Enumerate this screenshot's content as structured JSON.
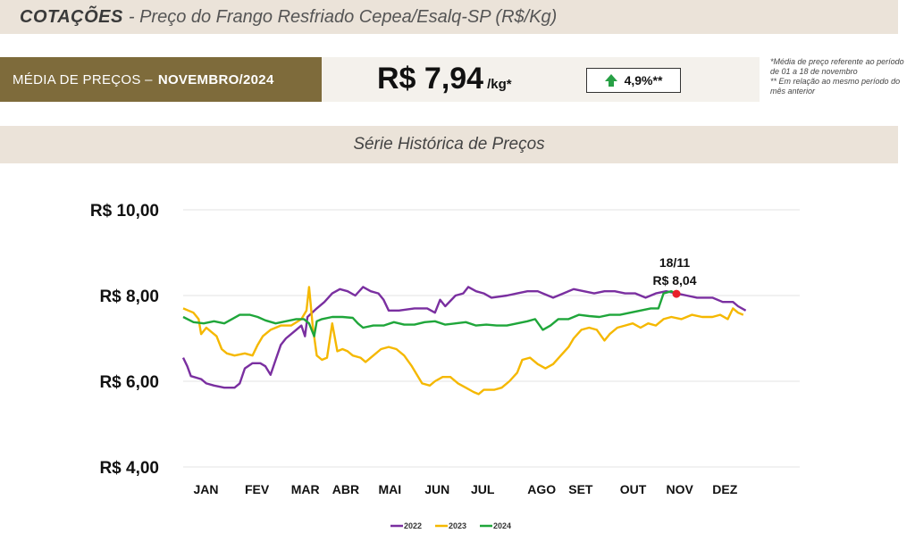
{
  "header": {
    "title_strong": "COTAÇÕES",
    "title_rest": "- Preço do Frango Resfriado Cepea/Esalq-SP (R$/Kg)"
  },
  "summary": {
    "label": "MÉDIA DE PREÇOS –",
    "month": "NOVEMBRO/2024",
    "price": "R$ 7,94",
    "unit": "/kg*",
    "change": "4,9%**",
    "change_icon": "arrow-up-icon",
    "footnote_1": "*Média de preço referente ao período de 01 a 18 de novembro",
    "footnote_2": "** Em relação ao mesmo período do mês anterior"
  },
  "section": {
    "title": "Série Histórica de Preços"
  },
  "chart_data": {
    "type": "line",
    "title": "Série Histórica de Preços",
    "ylim": [
      4,
      10
    ],
    "xlim": [
      0,
      12
    ],
    "yticks": [
      4,
      6,
      8,
      10
    ],
    "ytick_labels": [
      "R$ 4,00",
      "R$ 6,00",
      "R$ 8,00",
      "R$ 10,00"
    ],
    "categories": [
      "JAN",
      "FEV",
      "MAR",
      "ABR",
      "MAI",
      "JUN",
      "JUL",
      "AGO",
      "SET",
      "OUT",
      "NOV",
      "DEZ"
    ],
    "category_positions": [
      0.2,
      1.2,
      2.1,
      2.9,
      3.8,
      4.7,
      5.6,
      6.7,
      7.5,
      8.5,
      9.4,
      10.3
    ],
    "grid": true,
    "legend_position": "bottom-center",
    "annotation": {
      "label": "18/11",
      "value_label": "R$ 8,04",
      "x": 9.6,
      "y": 8.04,
      "color": "#e8202a"
    },
    "series": [
      {
        "name": "2022",
        "color": "#7a2fa0",
        "points": [
          [
            0,
            6.55
          ],
          [
            0.08,
            6.35
          ],
          [
            0.15,
            6.12
          ],
          [
            0.35,
            6.05
          ],
          [
            0.45,
            5.95
          ],
          [
            0.6,
            5.9
          ],
          [
            0.8,
            5.85
          ],
          [
            1.0,
            5.85
          ],
          [
            1.1,
            5.95
          ],
          [
            1.2,
            6.3
          ],
          [
            1.35,
            6.42
          ],
          [
            1.5,
            6.42
          ],
          [
            1.6,
            6.35
          ],
          [
            1.7,
            6.15
          ],
          [
            1.8,
            6.5
          ],
          [
            1.9,
            6.85
          ],
          [
            2.0,
            7.0
          ],
          [
            2.1,
            7.1
          ],
          [
            2.2,
            7.2
          ],
          [
            2.3,
            7.3
          ],
          [
            2.37,
            7.05
          ],
          [
            2.42,
            7.5
          ],
          [
            2.6,
            7.7
          ],
          [
            2.75,
            7.85
          ],
          [
            2.9,
            8.05
          ],
          [
            3.05,
            8.15
          ],
          [
            3.2,
            8.1
          ],
          [
            3.35,
            8.0
          ],
          [
            3.5,
            8.2
          ],
          [
            3.65,
            8.1
          ],
          [
            3.8,
            8.05
          ],
          [
            3.9,
            7.9
          ],
          [
            4.0,
            7.65
          ],
          [
            4.2,
            7.65
          ],
          [
            4.5,
            7.7
          ],
          [
            4.75,
            7.7
          ],
          [
            4.9,
            7.6
          ],
          [
            5.0,
            7.9
          ],
          [
            5.1,
            7.75
          ],
          [
            5.3,
            8.0
          ],
          [
            5.45,
            8.05
          ],
          [
            5.55,
            8.2
          ],
          [
            5.7,
            8.1
          ],
          [
            5.85,
            8.05
          ],
          [
            6.0,
            7.95
          ],
          [
            6.3,
            8.0
          ],
          [
            6.5,
            8.05
          ],
          [
            6.7,
            8.1
          ],
          [
            6.9,
            8.1
          ],
          [
            7.0,
            8.05
          ],
          [
            7.2,
            7.95
          ],
          [
            7.4,
            8.05
          ],
          [
            7.6,
            8.15
          ],
          [
            7.8,
            8.1
          ],
          [
            8.0,
            8.05
          ],
          [
            8.2,
            8.1
          ],
          [
            8.4,
            8.1
          ],
          [
            8.6,
            8.05
          ],
          [
            8.8,
            8.05
          ],
          [
            9.0,
            7.95
          ],
          [
            9.2,
            8.05
          ],
          [
            9.4,
            8.1
          ],
          [
            9.6,
            8.05
          ],
          [
            9.8,
            8.0
          ],
          [
            10.0,
            7.95
          ],
          [
            10.3,
            7.95
          ],
          [
            10.5,
            7.85
          ],
          [
            10.7,
            7.85
          ],
          [
            10.8,
            7.75
          ],
          [
            10.95,
            7.65
          ]
        ]
      },
      {
        "name": "2023",
        "color": "#f5b800",
        "points": [
          [
            0,
            7.7
          ],
          [
            0.1,
            7.65
          ],
          [
            0.2,
            7.6
          ],
          [
            0.3,
            7.45
          ],
          [
            0.35,
            7.1
          ],
          [
            0.45,
            7.25
          ],
          [
            0.55,
            7.15
          ],
          [
            0.65,
            7.05
          ],
          [
            0.75,
            6.75
          ],
          [
            0.85,
            6.65
          ],
          [
            1.0,
            6.6
          ],
          [
            1.2,
            6.65
          ],
          [
            1.35,
            6.6
          ],
          [
            1.45,
            6.85
          ],
          [
            1.55,
            7.05
          ],
          [
            1.7,
            7.2
          ],
          [
            1.9,
            7.3
          ],
          [
            2.1,
            7.3
          ],
          [
            2.3,
            7.45
          ],
          [
            2.4,
            7.65
          ],
          [
            2.45,
            8.2
          ],
          [
            2.52,
            7.3
          ],
          [
            2.6,
            6.6
          ],
          [
            2.7,
            6.5
          ],
          [
            2.8,
            6.55
          ],
          [
            2.9,
            7.35
          ],
          [
            3.0,
            6.7
          ],
          [
            3.1,
            6.75
          ],
          [
            3.2,
            6.7
          ],
          [
            3.3,
            6.6
          ],
          [
            3.45,
            6.55
          ],
          [
            3.55,
            6.45
          ],
          [
            3.7,
            6.6
          ],
          [
            3.85,
            6.75
          ],
          [
            4.0,
            6.8
          ],
          [
            4.15,
            6.75
          ],
          [
            4.3,
            6.6
          ],
          [
            4.45,
            6.35
          ],
          [
            4.55,
            6.15
          ],
          [
            4.65,
            5.95
          ],
          [
            4.8,
            5.9
          ],
          [
            4.9,
            6.0
          ],
          [
            5.05,
            6.1
          ],
          [
            5.2,
            6.1
          ],
          [
            5.35,
            5.95
          ],
          [
            5.5,
            5.85
          ],
          [
            5.65,
            5.75
          ],
          [
            5.75,
            5.7
          ],
          [
            5.85,
            5.8
          ],
          [
            6.05,
            5.8
          ],
          [
            6.2,
            5.85
          ],
          [
            6.35,
            6.0
          ],
          [
            6.5,
            6.2
          ],
          [
            6.6,
            6.5
          ],
          [
            6.75,
            6.55
          ],
          [
            6.9,
            6.4
          ],
          [
            7.05,
            6.3
          ],
          [
            7.2,
            6.4
          ],
          [
            7.35,
            6.6
          ],
          [
            7.5,
            6.8
          ],
          [
            7.6,
            7.0
          ],
          [
            7.75,
            7.2
          ],
          [
            7.9,
            7.25
          ],
          [
            8.05,
            7.2
          ],
          [
            8.2,
            6.95
          ],
          [
            8.3,
            7.1
          ],
          [
            8.45,
            7.25
          ],
          [
            8.6,
            7.3
          ],
          [
            8.75,
            7.35
          ],
          [
            8.9,
            7.25
          ],
          [
            9.05,
            7.35
          ],
          [
            9.2,
            7.3
          ],
          [
            9.35,
            7.45
          ],
          [
            9.5,
            7.5
          ],
          [
            9.7,
            7.45
          ],
          [
            9.9,
            7.55
          ],
          [
            10.1,
            7.5
          ],
          [
            10.3,
            7.5
          ],
          [
            10.45,
            7.55
          ],
          [
            10.6,
            7.45
          ],
          [
            10.7,
            7.7
          ],
          [
            10.8,
            7.6
          ],
          [
            10.9,
            7.55
          ]
        ]
      },
      {
        "name": "2024",
        "color": "#1fa63a",
        "points": [
          [
            0,
            7.5
          ],
          [
            0.2,
            7.38
          ],
          [
            0.4,
            7.35
          ],
          [
            0.6,
            7.4
          ],
          [
            0.8,
            7.35
          ],
          [
            0.95,
            7.45
          ],
          [
            1.1,
            7.55
          ],
          [
            1.3,
            7.55
          ],
          [
            1.45,
            7.5
          ],
          [
            1.6,
            7.42
          ],
          [
            1.8,
            7.35
          ],
          [
            2.0,
            7.4
          ],
          [
            2.2,
            7.45
          ],
          [
            2.35,
            7.45
          ],
          [
            2.45,
            7.35
          ],
          [
            2.55,
            7.05
          ],
          [
            2.6,
            7.4
          ],
          [
            2.7,
            7.45
          ],
          [
            2.9,
            7.5
          ],
          [
            3.1,
            7.5
          ],
          [
            3.3,
            7.48
          ],
          [
            3.4,
            7.35
          ],
          [
            3.5,
            7.25
          ],
          [
            3.7,
            7.3
          ],
          [
            3.9,
            7.3
          ],
          [
            4.1,
            7.38
          ],
          [
            4.3,
            7.32
          ],
          [
            4.5,
            7.32
          ],
          [
            4.7,
            7.38
          ],
          [
            4.9,
            7.4
          ],
          [
            5.1,
            7.32
          ],
          [
            5.3,
            7.35
          ],
          [
            5.5,
            7.38
          ],
          [
            5.7,
            7.3
          ],
          [
            5.9,
            7.32
          ],
          [
            6.1,
            7.3
          ],
          [
            6.3,
            7.3
          ],
          [
            6.5,
            7.35
          ],
          [
            6.7,
            7.4
          ],
          [
            6.85,
            7.45
          ],
          [
            7.0,
            7.2
          ],
          [
            7.15,
            7.3
          ],
          [
            7.3,
            7.45
          ],
          [
            7.5,
            7.45
          ],
          [
            7.7,
            7.55
          ],
          [
            7.9,
            7.52
          ],
          [
            8.1,
            7.5
          ],
          [
            8.3,
            7.55
          ],
          [
            8.5,
            7.55
          ],
          [
            8.7,
            7.6
          ],
          [
            8.9,
            7.65
          ],
          [
            9.1,
            7.7
          ],
          [
            9.25,
            7.7
          ],
          [
            9.35,
            8.05
          ],
          [
            9.5,
            8.1
          ],
          [
            9.6,
            8.04
          ]
        ]
      }
    ]
  }
}
